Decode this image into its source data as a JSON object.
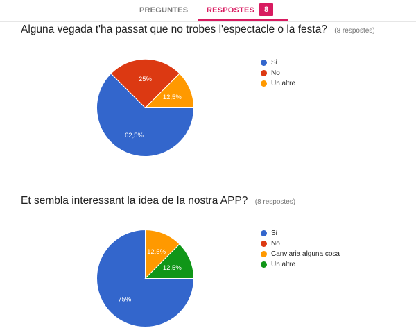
{
  "tabs": [
    {
      "label": "PREGUNTES",
      "active": false
    },
    {
      "label": "RESPOSTES",
      "active": true
    }
  ],
  "response_badge": "8",
  "colors": {
    "accent": "#d81b60"
  },
  "chart_data": [
    {
      "type": "pie",
      "title": "Alguna vegada t'ha passat que no trobes l'espectacle o la festa?",
      "subtitle": "(8 respostes)",
      "legend_position": "right",
      "slices": [
        {
          "name": "Si",
          "value": 62.5,
          "label": "62,5%",
          "color": "#3366cc"
        },
        {
          "name": "No",
          "value": 25,
          "label": "25%",
          "color": "#dc3912"
        },
        {
          "name": "Un altre",
          "value": 12.5,
          "label": "12,5%",
          "color": "#ff9900"
        }
      ]
    },
    {
      "type": "pie",
      "title": "Et sembla interessant la idea de la nostra APP?",
      "subtitle": "(8 respostes)",
      "legend_position": "right",
      "slices": [
        {
          "name": "Si",
          "value": 75,
          "label": "75%",
          "color": "#3366cc"
        },
        {
          "name": "No",
          "value": 0,
          "label": "",
          "color": "#dc3912"
        },
        {
          "name": "Canviaria alguna cosa",
          "value": 12.5,
          "label": "12,5%",
          "color": "#ff9900"
        },
        {
          "name": "Un altre",
          "value": 12.5,
          "label": "12,5%",
          "color": "#109618"
        }
      ]
    }
  ]
}
